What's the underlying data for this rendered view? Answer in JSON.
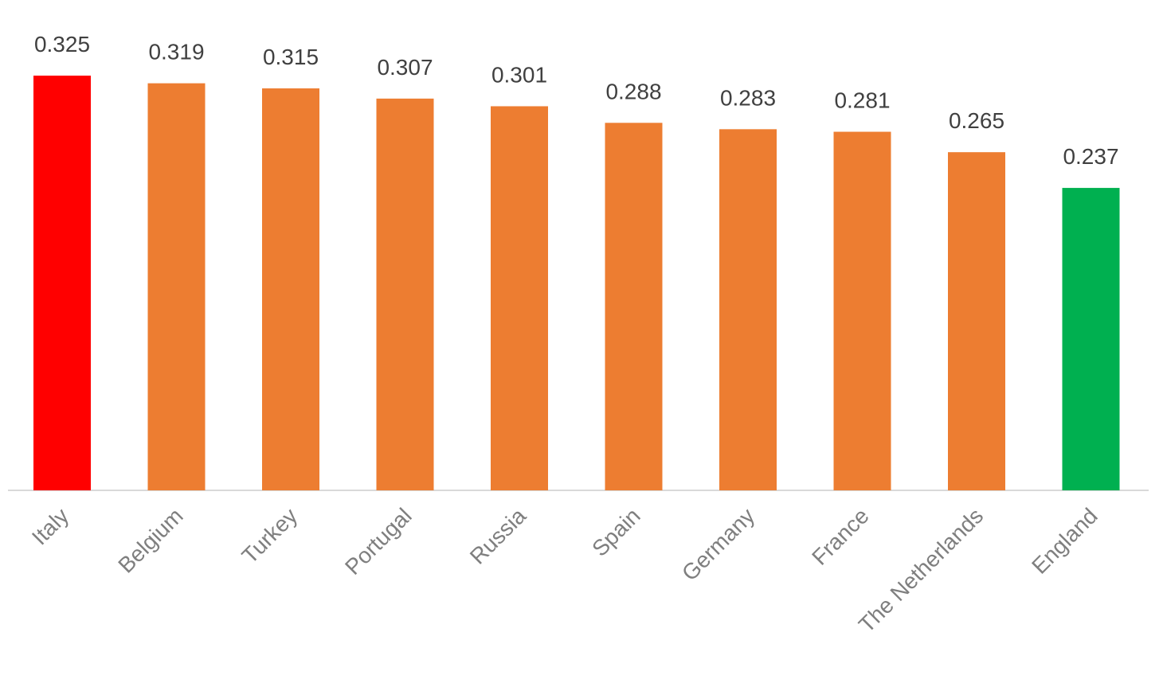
{
  "chart_data": {
    "type": "bar",
    "categories": [
      "Italy",
      "Belgium",
      "Turkey",
      "Portugal",
      "Russia",
      "Spain",
      "Germany",
      "France",
      "The Netherlands",
      "England"
    ],
    "values": [
      0.325,
      0.319,
      0.315,
      0.307,
      0.301,
      0.288,
      0.283,
      0.281,
      0.265,
      0.237
    ],
    "colors": [
      "#ff0000",
      "#ed7d31",
      "#ed7d31",
      "#ed7d31",
      "#ed7d31",
      "#ed7d31",
      "#ed7d31",
      "#ed7d31",
      "#ed7d31",
      "#00b050"
    ]
  }
}
